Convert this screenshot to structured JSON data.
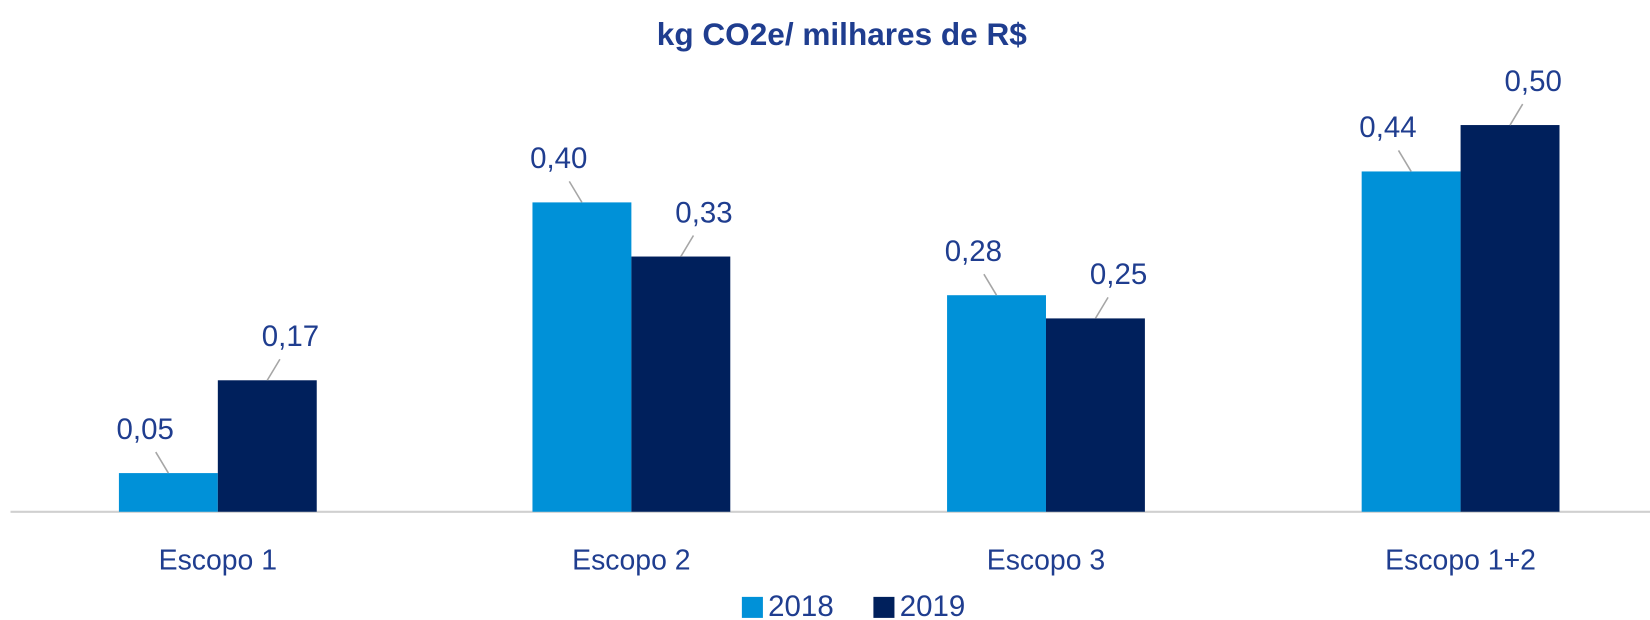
{
  "chart_data": {
    "type": "bar",
    "title": "kg CO2e/ milhares de R$",
    "categories": [
      "Escopo 1",
      "Escopo 2",
      "Escopo 3",
      "Escopo 1+2"
    ],
    "series": [
      {
        "name": "2018",
        "color": "#0091d8",
        "values": [
          0.05,
          0.4,
          0.28,
          0.44
        ],
        "value_labels": [
          "0,05",
          "0,40",
          "0,28",
          "0,44"
        ]
      },
      {
        "name": "2019",
        "color": "#00205c",
        "values": [
          0.17,
          0.33,
          0.25,
          0.5
        ],
        "value_labels": [
          "0,17",
          "0,33",
          "0,25",
          "0,50"
        ]
      }
    ],
    "legend": "bottom"
  }
}
